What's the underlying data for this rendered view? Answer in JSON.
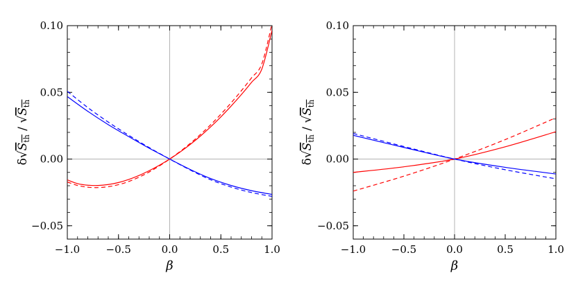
{
  "chart_data": [
    {
      "type": "line",
      "xlabel": "β",
      "ylabel": "δ√S_th / √S_th",
      "xlim": [
        -1.0,
        1.0
      ],
      "ylim": [
        -0.06,
        0.1
      ],
      "xticks": [
        "-1.0",
        "-0.5",
        "0.0",
        "0.5",
        "1.0"
      ],
      "yticks": [
        "-0.05",
        "0.00",
        "0.05",
        "0.10"
      ],
      "zero_lines": true,
      "series": [
        {
          "color": "#ff0000",
          "style": "solid",
          "x": [
            -1.0,
            -0.9,
            -0.8,
            -0.7,
            -0.6,
            -0.5,
            -0.4,
            -0.3,
            -0.2,
            -0.1,
            0.0,
            0.1,
            0.2,
            0.3,
            0.4,
            0.5,
            0.6,
            0.7,
            0.8,
            0.9,
            1.0
          ],
          "values": [
            -0.0156,
            -0.0184,
            -0.0196,
            -0.0198,
            -0.0191,
            -0.0176,
            -0.0153,
            -0.0123,
            -0.0087,
            -0.0046,
            0.0,
            0.0052,
            0.0109,
            0.0172,
            0.0241,
            0.0316,
            0.0397,
            0.0483,
            0.0575,
            0.0674,
            0.0965
          ]
        },
        {
          "color": "#ff0000",
          "style": "dashed",
          "x": [
            -1.0,
            -0.9,
            -0.8,
            -0.7,
            -0.6,
            -0.5,
            -0.4,
            -0.3,
            -0.2,
            -0.1,
            0.0,
            0.1,
            0.2,
            0.3,
            0.4,
            0.5,
            0.6,
            0.7,
            0.8,
            0.9,
            1.0
          ],
          "values": [
            -0.0172,
            -0.0198,
            -0.0211,
            -0.0214,
            -0.0207,
            -0.0192,
            -0.0168,
            -0.0136,
            -0.0097,
            -0.0051,
            0.0,
            0.0056,
            0.0117,
            0.0184,
            0.0257,
            0.0336,
            0.0421,
            0.0512,
            0.0609,
            0.0713,
            0.1015
          ]
        },
        {
          "color": "#0000ff",
          "style": "solid",
          "x": [
            -1.0,
            -0.8,
            -0.6,
            -0.4,
            -0.2,
            0.0,
            0.2,
            0.4,
            0.6,
            0.8,
            1.0
          ],
          "values": [
            0.0468,
            0.0358,
            0.0258,
            0.0168,
            0.0081,
            0.0,
            -0.0078,
            -0.0146,
            -0.0198,
            -0.0237,
            -0.0265
          ]
        },
        {
          "color": "#0000ff",
          "style": "dashed",
          "x": [
            -1.0,
            -0.8,
            -0.6,
            -0.4,
            -0.2,
            0.0,
            0.2,
            0.4,
            0.6,
            0.8,
            1.0
          ],
          "values": [
            0.0508,
            0.0386,
            0.0277,
            0.0178,
            0.0086,
            0.0,
            -0.0082,
            -0.0155,
            -0.021,
            -0.0251,
            -0.028
          ]
        }
      ]
    },
    {
      "type": "line",
      "xlabel": "β",
      "ylabel": "δ√S_th / √S_th",
      "xlim": [
        -1.0,
        1.0
      ],
      "ylim": [
        -0.06,
        0.1
      ],
      "xticks": [
        "-1.0",
        "-0.5",
        "0.0",
        "0.5",
        "1.0"
      ],
      "yticks": [
        "-0.05",
        "0.00",
        "0.05",
        "0.10"
      ],
      "zero_lines": true,
      "series": [
        {
          "color": "#ff0000",
          "style": "solid",
          "x": [
            -1.0,
            -0.5,
            0.0,
            0.5,
            1.0
          ],
          "values": [
            -0.01,
            -0.0058,
            0.0,
            0.0092,
            0.0205
          ]
        },
        {
          "color": "#ff0000",
          "style": "dashed",
          "x": [
            -1.0,
            -0.5,
            0.0,
            0.5,
            1.0
          ],
          "values": [
            -0.024,
            -0.0128,
            0.0,
            0.0146,
            0.031
          ]
        },
        {
          "color": "#0000ff",
          "style": "solid",
          "x": [
            -1.0,
            -0.5,
            0.0,
            0.5,
            1.0
          ],
          "values": [
            0.0178,
            0.0087,
            0.0,
            -0.0062,
            -0.0112
          ]
        },
        {
          "color": "#0000ff",
          "style": "dashed",
          "x": [
            -1.0,
            -0.5,
            0.0,
            0.5,
            1.0
          ],
          "values": [
            0.0192,
            0.0094,
            0.0,
            -0.008,
            -0.0148
          ]
        }
      ]
    }
  ]
}
